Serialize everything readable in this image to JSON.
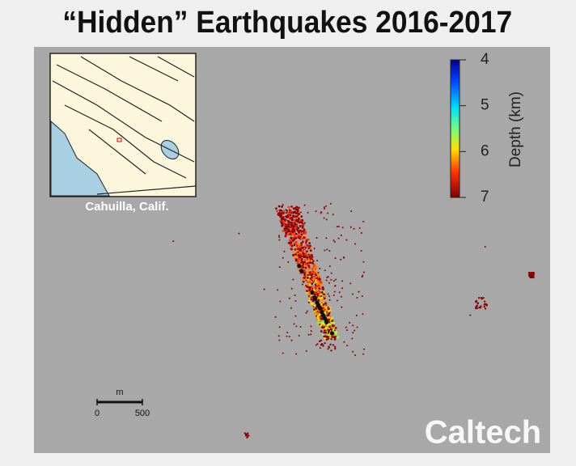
{
  "title": "“Hidden” Earthquakes 2016-2017",
  "inset": {
    "label": "Cahuilla, Calif."
  },
  "colorbar": {
    "label": "Depth (km)",
    "range": [
      4,
      7
    ],
    "ticks": [
      4,
      5,
      6,
      7
    ]
  },
  "scale_bar": {
    "unit": "m",
    "ticks": [
      0,
      500
    ]
  },
  "logo": "Caltech"
}
